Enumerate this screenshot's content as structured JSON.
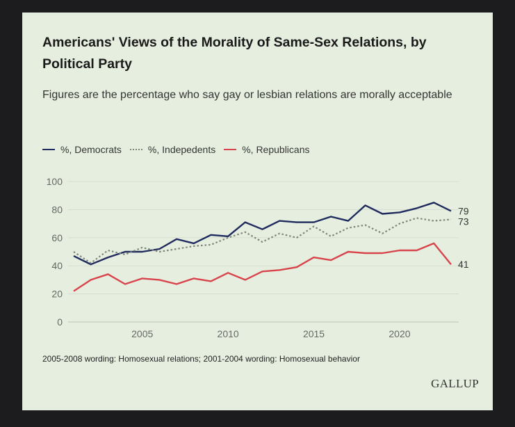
{
  "chart_data": {
    "type": "line",
    "title": "Americans' Views of the Morality of Same-Sex Relations, by Political Party",
    "subtitle": "Figures are the percentage who say gay or lesbian relations are morally acceptable",
    "xlabel": "",
    "ylabel": "",
    "x": [
      2001,
      2002,
      2003,
      2004,
      2005,
      2006,
      2007,
      2008,
      2009,
      2010,
      2011,
      2012,
      2013,
      2014,
      2015,
      2016,
      2017,
      2018,
      2019,
      2020,
      2021,
      2022,
      2023
    ],
    "xticks": [
      2005,
      2010,
      2015,
      2020
    ],
    "yticks": [
      0,
      20,
      40,
      60,
      80,
      100
    ],
    "ylim": [
      0,
      100
    ],
    "grid": true,
    "legend_position": "top-left",
    "series": [
      {
        "name": "%, Democrats",
        "color": "#1f2a5e",
        "style": "solid",
        "end_label": "79",
        "values": [
          47,
          41,
          46,
          50,
          50,
          52,
          59,
          56,
          62,
          61,
          71,
          66,
          72,
          71,
          71,
          75,
          72,
          83,
          77,
          78,
          81,
          85,
          79
        ]
      },
      {
        "name": "%, Indepedents",
        "color": "#7d857a",
        "style": "dotted",
        "end_label": "73",
        "values": [
          50,
          42,
          51,
          48,
          53,
          50,
          52,
          54,
          55,
          60,
          64,
          57,
          63,
          60,
          68,
          61,
          67,
          69,
          63,
          70,
          74,
          72,
          73
        ]
      },
      {
        "name": "%, Republicans",
        "color": "#d9434b",
        "style": "solid",
        "end_label": "41",
        "values": [
          22,
          30,
          34,
          27,
          31,
          30,
          27,
          31,
          29,
          35,
          30,
          36,
          37,
          39,
          46,
          44,
          50,
          49,
          49,
          51,
          51,
          56,
          41
        ]
      }
    ],
    "note": "2005-2008 wording: Homosexual relations; 2001-2004 wording: Homosexual behavior"
  },
  "brand": "GALLUP"
}
